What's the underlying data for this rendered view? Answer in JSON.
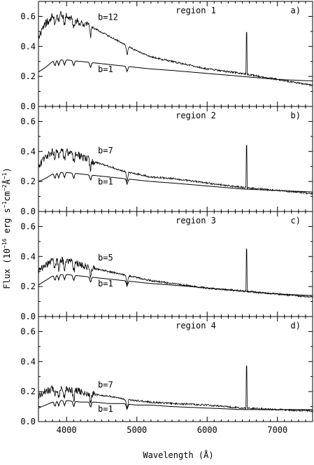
{
  "figure": {
    "ylabel": "Flux (10^-16 erg s^-1 cm^-2 Å^-1)",
    "ylabel_parts": {
      "pre": "Flux (10",
      "exp1": "−16",
      "mid1": " erg s",
      "exp2": "−1",
      "mid2": "cm",
      "exp3": "−2",
      "mid3": "Å",
      "exp4": "−1",
      "post": ")"
    },
    "xlabel": "Wavelength (Å)"
  },
  "chart_data": [
    {
      "type": "line",
      "panel_letter": "a)",
      "region_label": "region 1",
      "xlim": [
        3600,
        7500
      ],
      "ylim": [
        0.0,
        0.7
      ],
      "xticks": [
        4000,
        5000,
        6000,
        7000
      ],
      "xtick_labels": [
        "",
        "",
        "",
        ""
      ],
      "yticks": [
        0.0,
        0.2,
        0.4,
        0.6
      ],
      "ytick_labels": [
        "0.0",
        "0.2",
        "0.4",
        "0.6"
      ],
      "series": [
        {
          "name": "b=12",
          "x": [
            3600,
            3700,
            3800,
            3900,
            4000,
            4200,
            4400,
            4600,
            4800,
            5000,
            5200,
            5500,
            6000,
            6500,
            7000,
            7500
          ],
          "y": [
            0.45,
            0.55,
            0.6,
            0.62,
            0.6,
            0.56,
            0.52,
            0.47,
            0.42,
            0.37,
            0.33,
            0.3,
            0.25,
            0.22,
            0.18,
            0.14
          ]
        },
        {
          "name": "b=1",
          "x": [
            3600,
            3700,
            3800,
            3900,
            4000,
            4200,
            4400,
            4600,
            4800,
            5000,
            5200,
            5500,
            6000,
            6500,
            7000,
            7500
          ],
          "y": [
            0.23,
            0.26,
            0.3,
            0.31,
            0.31,
            0.3,
            0.29,
            0.28,
            0.27,
            0.26,
            0.25,
            0.24,
            0.22,
            0.2,
            0.18,
            0.17
          ]
        }
      ],
      "series_labels": [
        "b=12",
        "b=1"
      ]
    },
    {
      "type": "line",
      "panel_letter": "b)",
      "region_label": "region 2",
      "xlim": [
        3600,
        7500
      ],
      "ylim": [
        0.0,
        0.7
      ],
      "xticks": [
        4000,
        5000,
        6000,
        7000
      ],
      "xtick_labels": [
        "",
        "",
        "",
        ""
      ],
      "yticks": [
        0.0,
        0.2,
        0.4,
        0.6
      ],
      "ytick_labels": [
        "0.0",
        "0.2",
        "0.4",
        "0.6"
      ],
      "series": [
        {
          "name": "b=7",
          "x": [
            3600,
            3700,
            3800,
            3900,
            4000,
            4200,
            4400,
            4600,
            4800,
            5000,
            5200,
            5500,
            6000,
            6500,
            7000,
            7500
          ],
          "y": [
            0.3,
            0.36,
            0.4,
            0.41,
            0.4,
            0.37,
            0.33,
            0.3,
            0.27,
            0.25,
            0.23,
            0.22,
            0.19,
            0.16,
            0.14,
            0.12
          ]
        },
        {
          "name": "b=1",
          "x": [
            3600,
            3700,
            3800,
            3900,
            4000,
            4200,
            4400,
            4600,
            4800,
            5000,
            5200,
            5500,
            6000,
            6500,
            7000,
            7500
          ],
          "y": [
            0.2,
            0.22,
            0.25,
            0.26,
            0.26,
            0.25,
            0.24,
            0.23,
            0.22,
            0.21,
            0.2,
            0.19,
            0.17,
            0.15,
            0.14,
            0.13
          ]
        }
      ],
      "series_labels": [
        "b=7",
        "b=1"
      ]
    },
    {
      "type": "line",
      "panel_letter": "c)",
      "region_label": "region 3",
      "xlim": [
        3600,
        7500
      ],
      "ylim": [
        0.0,
        0.7
      ],
      "xticks": [
        4000,
        5000,
        6000,
        7000
      ],
      "xtick_labels": [
        "",
        "",
        "",
        ""
      ],
      "yticks": [
        0.0,
        0.2,
        0.4,
        0.6
      ],
      "ytick_labels": [
        "0.0",
        "0.2",
        "0.4",
        "0.6"
      ],
      "series": [
        {
          "name": "b=5",
          "x": [
            3600,
            3700,
            3800,
            3900,
            4000,
            4200,
            4400,
            4600,
            4800,
            5000,
            5200,
            5500,
            6000,
            6500,
            7000,
            7500
          ],
          "y": [
            0.3,
            0.34,
            0.37,
            0.38,
            0.37,
            0.35,
            0.32,
            0.3,
            0.28,
            0.26,
            0.24,
            0.22,
            0.19,
            0.17,
            0.15,
            0.13
          ]
        },
        {
          "name": "b=1",
          "x": [
            3600,
            3700,
            3800,
            3900,
            4000,
            4200,
            4400,
            4600,
            4800,
            5000,
            5200,
            5500,
            6000,
            6500,
            7000,
            7500
          ],
          "y": [
            0.21,
            0.24,
            0.27,
            0.28,
            0.28,
            0.27,
            0.26,
            0.25,
            0.24,
            0.23,
            0.22,
            0.21,
            0.19,
            0.17,
            0.15,
            0.14
          ]
        }
      ],
      "series_labels": [
        "b=5",
        "b=1"
      ]
    },
    {
      "type": "line",
      "panel_letter": "d)",
      "region_label": "region 4",
      "xlim": [
        3600,
        7500
      ],
      "ylim": [
        0.0,
        0.7
      ],
      "xticks": [
        4000,
        5000,
        6000,
        7000
      ],
      "xtick_labels": [
        "4000",
        "5000",
        "6000",
        "7000"
      ],
      "yticks": [
        0.0,
        0.2,
        0.4,
        0.6
      ],
      "ytick_labels": [
        "0.0",
        "0.2",
        "0.4",
        "0.6"
      ],
      "series": [
        {
          "name": "b=7",
          "x": [
            3600,
            3700,
            3800,
            3900,
            4000,
            4200,
            4400,
            4600,
            4800,
            5000,
            5200,
            5500,
            6000,
            6500,
            7000,
            7500
          ],
          "y": [
            0.17,
            0.2,
            0.22,
            0.22,
            0.21,
            0.2,
            0.18,
            0.17,
            0.15,
            0.14,
            0.13,
            0.12,
            0.11,
            0.09,
            0.08,
            0.07
          ]
        },
        {
          "name": "b=1",
          "x": [
            3600,
            3700,
            3800,
            3900,
            4000,
            4200,
            4400,
            4600,
            4800,
            5000,
            5200,
            5500,
            6000,
            6500,
            7000,
            7500
          ],
          "y": [
            0.09,
            0.11,
            0.13,
            0.14,
            0.14,
            0.13,
            0.13,
            0.12,
            0.12,
            0.11,
            0.11,
            0.1,
            0.09,
            0.08,
            0.08,
            0.08
          ]
        }
      ],
      "series_labels": [
        "b=7",
        "b=1"
      ]
    }
  ]
}
